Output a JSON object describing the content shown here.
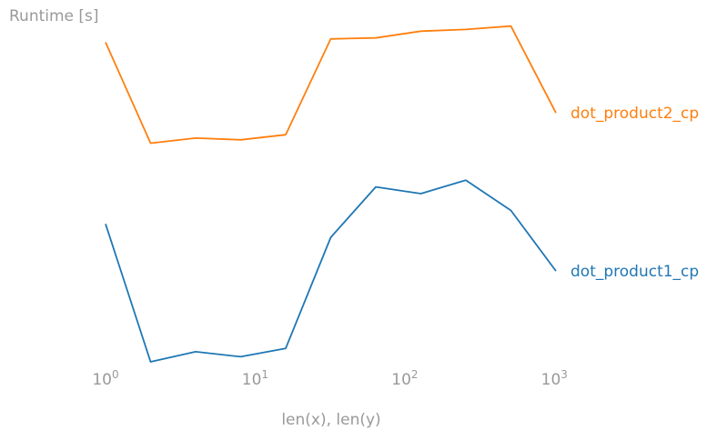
{
  "chart_data": {
    "type": "line",
    "xscale": "log",
    "yscale": "linear",
    "ylabel": "Runtime [s]",
    "xlabel": "len(x), len(y)",
    "xlim": [
      1,
      1024
    ],
    "ylim": [
      0,
      1
    ],
    "grid": false,
    "legend": "inline-right",
    "yticks_shown": false,
    "xticks": [
      {
        "value": 1,
        "base": "10",
        "exp": "0"
      },
      {
        "value": 10,
        "base": "10",
        "exp": "1"
      },
      {
        "value": 100,
        "base": "10",
        "exp": "2"
      },
      {
        "value": 1000,
        "base": "10",
        "exp": "3"
      }
    ],
    "x": [
      1,
      2,
      4,
      8,
      16,
      32,
      64,
      128,
      256,
      512,
      1024
    ],
    "series": [
      {
        "name": "dot_product1_cp",
        "color": "#1f77b4",
        "values": [
          0.41,
          0.0,
          0.03,
          0.015,
          0.04,
          0.37,
          0.52,
          0.5,
          0.54,
          0.45,
          0.27
        ]
      },
      {
        "name": "dot_product2_cp",
        "color": "#ff7f0e",
        "values": [
          0.95,
          0.65,
          0.665,
          0.66,
          0.675,
          0.96,
          0.963,
          0.983,
          0.988,
          0.998,
          0.74
        ]
      }
    ]
  }
}
